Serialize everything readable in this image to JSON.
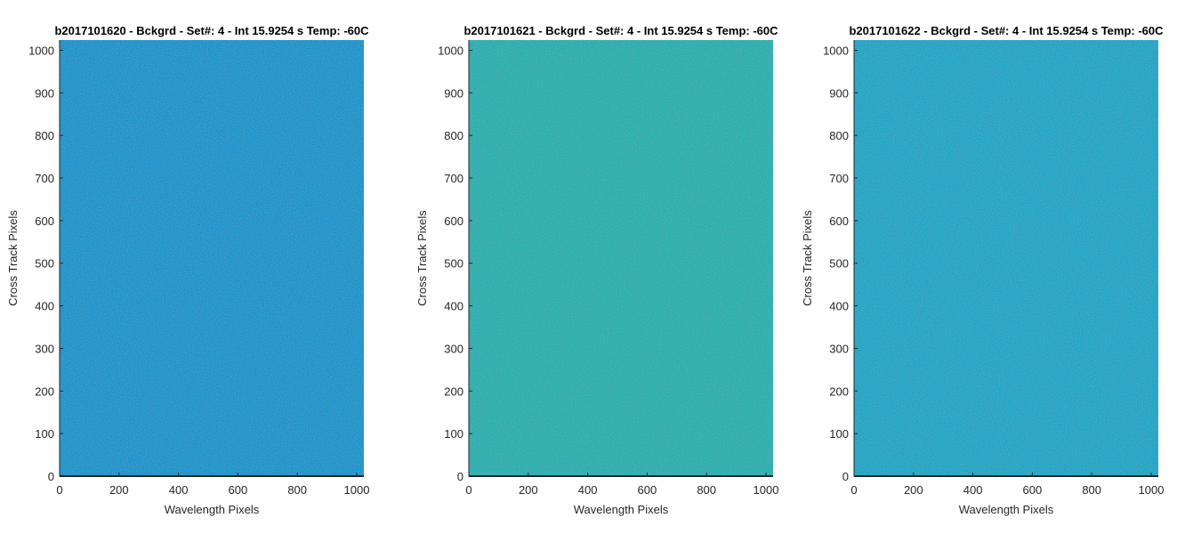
{
  "chart_data": [
    {
      "type": "heatmap",
      "title": "b2017101620 - Bckgrd - Set#: 4 - Int 15.9254 s Temp: -60C",
      "xlabel": "Wavelength Pixels",
      "ylabel": "Cross Track Pixels",
      "xlim": [
        0,
        1024
      ],
      "ylim": [
        0,
        1024
      ],
      "xticks": [
        0,
        200,
        400,
        600,
        800,
        1000
      ],
      "yticks": [
        0,
        100,
        200,
        300,
        400,
        500,
        600,
        700,
        800,
        900,
        1000
      ],
      "fill_color": "#1391cc",
      "noise_color": "#1fa0c8"
    },
    {
      "type": "heatmap",
      "title": "b2017101621 - Bckgrd - Set#: 4 - Int 15.9254 s Temp: -60C",
      "xlabel": "Wavelength Pixels",
      "ylabel": "Cross Track Pixels",
      "xlim": [
        0,
        1024
      ],
      "ylim": [
        0,
        1024
      ],
      "xticks": [
        0,
        200,
        400,
        600,
        800,
        1000
      ],
      "yticks": [
        0,
        100,
        200,
        300,
        400,
        500,
        600,
        700,
        800,
        900,
        1000
      ],
      "fill_color": "#22aeae",
      "noise_color": "#3cbaa0"
    },
    {
      "type": "heatmap",
      "title": "b2017101622 - Bckgrd - Set#: 4 - Int 15.9254 s Temp: -60C",
      "xlabel": "Wavelength Pixels",
      "ylabel": "Cross Track Pixels",
      "xlim": [
        0,
        1024
      ],
      "ylim": [
        0,
        1024
      ],
      "xticks": [
        0,
        200,
        400,
        600,
        800,
        1000
      ],
      "yticks": [
        0,
        100,
        200,
        300,
        400,
        500,
        600,
        700,
        800,
        900,
        1000
      ],
      "fill_color": "#18a3c6",
      "noise_color": "#28acbe"
    }
  ]
}
